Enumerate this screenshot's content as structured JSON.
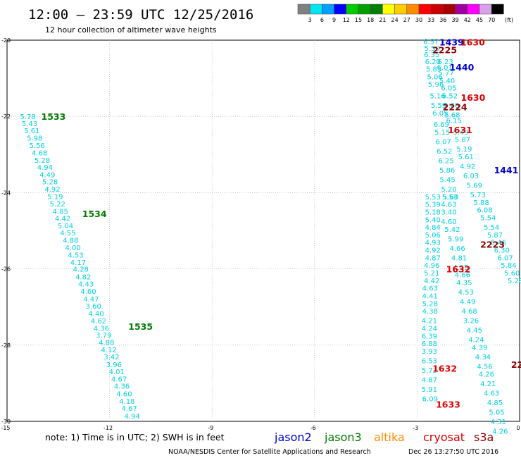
{
  "header": {
    "title": "12:00 — 23:59 UTC 12/25/2016",
    "subtitle": "12 hour collection of altimeter wave heights",
    "scale_unit": "(ft)"
  },
  "colorbar": {
    "swatches": [
      "#808080",
      "#00e5ee",
      "#00a0ff",
      "#0000ff",
      "#00cc00",
      "#00a000",
      "#008000",
      "#ffff00",
      "#ffcc00",
      "#ff8c00",
      "#ff0000",
      "#cc0000",
      "#aa0000",
      "#a000a0",
      "#ff00ff",
      "#d8a0e8",
      "#000000"
    ],
    "labels": [
      "3",
      "6",
      "9",
      "12",
      "15",
      "18",
      "21",
      "24",
      "27",
      "30",
      "33",
      "36",
      "39",
      "42",
      "45",
      "70"
    ]
  },
  "footer": {
    "note": "note: 1) Time is in UTC; 2) SWH is in feet",
    "credit": "NOAA/NESDIS Center for Satellite Applications and Research",
    "timestamp": "Dec 26 13:27:50 UTC 2016"
  },
  "legend": [
    {
      "name": "jason2",
      "color": "#0000cc"
    },
    {
      "name": "jason3",
      "color": "#007a00"
    },
    {
      "name": "altika",
      "color": "#ff8c00"
    },
    {
      "name": "cryosat",
      "color": "#dd0000"
    },
    {
      "name": "s3a",
      "color": "#8b0000"
    }
  ],
  "chart_data": {
    "type": "scatter",
    "title": "12:00 — 23:59 UTC 12/25/2016",
    "subtitle": "12 hour collection of altimeter wave heights",
    "xlim": [
      -15,
      0
    ],
    "ylim": [
      -30,
      -20
    ],
    "x_ticks": [
      "-15",
      "-12",
      "-9",
      "-6",
      "-3",
      "0"
    ],
    "y_ticks": [
      "-20",
      "-22",
      "-24",
      "-26",
      "-28",
      "-30"
    ],
    "grid": true,
    "value_color": "#00d0e0",
    "tracks": [
      {
        "points": [
          {
            "x": -14.62,
            "y": -22.0,
            "v": "5.78"
          },
          {
            "x": -14.57,
            "y": -22.18,
            "v": "5.43"
          },
          {
            "x": -14.5,
            "y": -22.37,
            "v": "5.61"
          },
          {
            "x": -14.42,
            "y": -22.56,
            "v": "5.98"
          },
          {
            "x": -14.35,
            "y": -22.75,
            "v": "5.56"
          },
          {
            "x": -14.28,
            "y": -22.95,
            "v": "4.68"
          },
          {
            "x": -14.2,
            "y": -23.14,
            "v": "5.28"
          },
          {
            "x": -14.12,
            "y": -23.33,
            "v": "4.94"
          },
          {
            "x": -14.05,
            "y": -23.52,
            "v": "4.49"
          },
          {
            "x": -13.97,
            "y": -23.71,
            "v": "5.28"
          },
          {
            "x": -13.9,
            "y": -23.9,
            "v": "4.92"
          },
          {
            "x": -13.82,
            "y": -24.09,
            "v": "5.19"
          },
          {
            "x": -13.75,
            "y": -24.29,
            "v": "5.22"
          },
          {
            "x": -13.67,
            "y": -24.48,
            "v": "4.85"
          },
          {
            "x": -13.6,
            "y": -24.67,
            "v": "4.42"
          },
          {
            "x": -13.52,
            "y": -24.86,
            "v": "5.04"
          },
          {
            "x": -13.45,
            "y": -25.05,
            "v": "4.55"
          },
          {
            "x": -13.37,
            "y": -25.24,
            "v": "4.88"
          },
          {
            "x": -13.3,
            "y": -25.43,
            "v": "4.00"
          },
          {
            "x": -13.22,
            "y": -25.63,
            "v": "4.53"
          },
          {
            "x": -13.15,
            "y": -25.82,
            "v": "4.17"
          },
          {
            "x": -13.07,
            "y": -26.0,
            "v": "4.28"
          },
          {
            "x": -13.0,
            "y": -26.2,
            "v": "4.82"
          },
          {
            "x": -12.92,
            "y": -26.39,
            "v": "4.43"
          },
          {
            "x": -12.85,
            "y": -26.58,
            "v": "4.60"
          },
          {
            "x": -12.77,
            "y": -26.78,
            "v": "4.47"
          },
          {
            "x": -12.7,
            "y": -26.97,
            "v": "3.60"
          },
          {
            "x": -12.62,
            "y": -27.16,
            "v": "4.40"
          },
          {
            "x": -12.55,
            "y": -27.36,
            "v": "4.62"
          },
          {
            "x": -12.47,
            "y": -27.55,
            "v": "4.36"
          },
          {
            "x": -12.4,
            "y": -27.73,
            "v": "3.79"
          },
          {
            "x": -12.32,
            "y": -27.92,
            "v": "4.88"
          },
          {
            "x": -12.25,
            "y": -28.11,
            "v": "4.12"
          },
          {
            "x": -12.17,
            "y": -28.3,
            "v": "3.42"
          },
          {
            "x": -12.1,
            "y": -28.5,
            "v": "3.96"
          },
          {
            "x": -12.02,
            "y": -28.69,
            "v": "4.01"
          },
          {
            "x": -11.95,
            "y": -28.88,
            "v": "4.67"
          },
          {
            "x": -11.87,
            "y": -29.07,
            "v": "4.36"
          },
          {
            "x": -11.8,
            "y": -29.27,
            "v": "4.60"
          },
          {
            "x": -11.72,
            "y": -29.46,
            "v": "4.18"
          },
          {
            "x": -11.65,
            "y": -29.65,
            "v": "4.67"
          },
          {
            "x": -11.57,
            "y": -29.85,
            "v": "4.94"
          }
        ]
      },
      {
        "points": [
          {
            "x": -2.82,
            "y": -20.03,
            "v": "6.57"
          },
          {
            "x": -2.79,
            "y": -20.2,
            "v": "5.50"
          },
          {
            "x": -2.8,
            "y": -20.37,
            "v": "6.35"
          },
          {
            "x": -2.77,
            "y": -20.55,
            "v": "6.20"
          },
          {
            "x": -2.74,
            "y": -20.75,
            "v": "5.85"
          },
          {
            "x": -2.71,
            "y": -20.95,
            "v": "5.06"
          },
          {
            "x": -2.68,
            "y": -21.15,
            "v": "5.96"
          },
          {
            "x": -2.63,
            "y": -21.45,
            "v": "5.16"
          },
          {
            "x": -2.6,
            "y": -21.7,
            "v": "5.59"
          },
          {
            "x": -2.55,
            "y": -21.9,
            "v": "6.05"
          },
          {
            "x": -2.52,
            "y": -22.2,
            "v": "6.69"
          },
          {
            "x": -2.49,
            "y": -22.4,
            "v": "5.15"
          },
          {
            "x": -2.46,
            "y": -22.65,
            "v": "6.07"
          },
          {
            "x": -2.43,
            "y": -22.9,
            "v": "6.52"
          },
          {
            "x": -2.38,
            "y": -23.15,
            "v": "6.25"
          },
          {
            "x": -2.35,
            "y": -23.4,
            "v": "5.86"
          },
          {
            "x": -2.34,
            "y": -23.65,
            "v": "5.45"
          },
          {
            "x": -2.3,
            "y": -23.9,
            "v": "5.20"
          },
          {
            "x": -2.27,
            "y": -24.1,
            "v": "5.53"
          }
        ]
      },
      {
        "points": [
          {
            "x": -2.77,
            "y": -24.1,
            "v": "5.53"
          },
          {
            "x": -2.77,
            "y": -24.3,
            "v": "5.39"
          },
          {
            "x": -2.77,
            "y": -24.5,
            "v": "5.18"
          },
          {
            "x": -2.77,
            "y": -24.7,
            "v": "5.40"
          },
          {
            "x": -2.77,
            "y": -24.9,
            "v": "4.84"
          },
          {
            "x": -2.77,
            "y": -25.1,
            "v": "5.06"
          },
          {
            "x": -2.77,
            "y": -25.3,
            "v": "4.93"
          },
          {
            "x": -2.77,
            "y": -25.5,
            "v": "4.92"
          },
          {
            "x": -2.77,
            "y": -25.7,
            "v": "4.87"
          },
          {
            "x": -2.8,
            "y": -25.9,
            "v": "4.96"
          },
          {
            "x": -2.8,
            "y": -26.1,
            "v": "5.21"
          },
          {
            "x": -2.8,
            "y": -26.3,
            "v": "4.42"
          },
          {
            "x": -2.85,
            "y": -26.5,
            "v": "4.63"
          },
          {
            "x": -2.85,
            "y": -26.7,
            "v": "4.41"
          },
          {
            "x": -2.85,
            "y": -26.9,
            "v": "5.28"
          },
          {
            "x": -2.85,
            "y": -27.1,
            "v": "4.38"
          },
          {
            "x": -2.87,
            "y": -27.35,
            "v": "4.21"
          },
          {
            "x": -2.87,
            "y": -27.55,
            "v": "4.24"
          },
          {
            "x": -2.87,
            "y": -27.75,
            "v": "6.39"
          },
          {
            "x": -2.87,
            "y": -27.95,
            "v": "6.88"
          },
          {
            "x": -2.87,
            "y": -28.15,
            "v": "3.93"
          },
          {
            "x": -2.87,
            "y": -28.4,
            "v": "6.53"
          },
          {
            "x": -2.87,
            "y": -28.65,
            "v": "5.73"
          },
          {
            "x": -2.87,
            "y": -28.9,
            "v": "4.87"
          },
          {
            "x": -2.87,
            "y": -29.15,
            "v": "5.91"
          },
          {
            "x": -2.85,
            "y": -29.4,
            "v": "6.09"
          }
        ]
      },
      {
        "points": [
          {
            "x": -2.4,
            "y": -20.55,
            "v": "6.23"
          },
          {
            "x": -2.42,
            "y": -20.7,
            "v": "6.01"
          },
          {
            "x": -2.38,
            "y": -20.85,
            "v": "5.77"
          },
          {
            "x": -2.35,
            "y": -21.05,
            "v": "5.40"
          },
          {
            "x": -2.3,
            "y": -21.25,
            "v": "6.05"
          },
          {
            "x": -2.27,
            "y": -21.45,
            "v": "6.52"
          },
          {
            "x": -2.22,
            "y": -21.7,
            "v": "5.68"
          },
          {
            "x": -2.2,
            "y": -21.95,
            "v": "5.68"
          },
          {
            "x": -2.15,
            "y": -22.1,
            "v": "6.15"
          },
          {
            "x": -1.95,
            "y": -22.4,
            "v": "5.49"
          },
          {
            "x": -1.9,
            "y": -22.6,
            "v": "5.87"
          },
          {
            "x": -1.85,
            "y": -22.85,
            "v": "5.19"
          },
          {
            "x": -1.8,
            "y": -23.05,
            "v": "5.61"
          },
          {
            "x": -1.75,
            "y": -23.3,
            "v": "4.92"
          },
          {
            "x": -1.65,
            "y": -23.55,
            "v": "6.03"
          },
          {
            "x": -1.55,
            "y": -23.8,
            "v": "5.69"
          },
          {
            "x": -1.45,
            "y": -24.05,
            "v": "5.73"
          },
          {
            "x": -1.35,
            "y": -24.25,
            "v": "5.88"
          },
          {
            "x": -1.25,
            "y": -24.45,
            "v": "6.08"
          },
          {
            "x": -1.15,
            "y": -24.65,
            "v": "5.54"
          },
          {
            "x": -1.05,
            "y": -24.9,
            "v": "5.54"
          },
          {
            "x": -0.95,
            "y": -25.1,
            "v": "5.87"
          },
          {
            "x": -0.85,
            "y": -25.3,
            "v": "5.46"
          },
          {
            "x": -0.75,
            "y": -25.5,
            "v": "6.30"
          },
          {
            "x": -0.65,
            "y": -25.7,
            "v": "6.07"
          },
          {
            "x": -0.55,
            "y": -25.9,
            "v": "5.84"
          },
          {
            "x": -0.45,
            "y": -26.1,
            "v": "5.60"
          },
          {
            "x": -0.35,
            "y": -26.3,
            "v": "5.28"
          }
        ]
      },
      {
        "points": [
          {
            "x": -2.25,
            "y": -24.1,
            "v": "5.60"
          },
          {
            "x": -2.3,
            "y": -24.3,
            "v": "4.63"
          },
          {
            "x": -2.3,
            "y": -24.5,
            "v": "3.40"
          },
          {
            "x": -2.3,
            "y": -24.75,
            "v": "4.60"
          },
          {
            "x": -2.2,
            "y": -24.95,
            "v": "5.42"
          },
          {
            "x": -2.1,
            "y": -25.2,
            "v": "5.99"
          },
          {
            "x": -2.05,
            "y": -25.45,
            "v": "4.66"
          },
          {
            "x": -2.0,
            "y": -25.7,
            "v": "4.81"
          },
          {
            "x": -1.95,
            "y": -25.95,
            "v": "4.55"
          },
          {
            "x": -1.9,
            "y": -26.15,
            "v": "4.66"
          },
          {
            "x": -1.85,
            "y": -26.35,
            "v": "4.35"
          },
          {
            "x": -1.8,
            "y": -26.6,
            "v": "4.53"
          },
          {
            "x": -1.75,
            "y": -26.85,
            "v": "4.49"
          },
          {
            "x": -1.7,
            "y": -27.1,
            "v": "4.68"
          },
          {
            "x": -1.65,
            "y": -27.35,
            "v": "3.26"
          },
          {
            "x": -1.55,
            "y": -27.6,
            "v": "4.45"
          },
          {
            "x": -1.5,
            "y": -27.85,
            "v": "4.24"
          },
          {
            "x": -1.4,
            "y": -28.05,
            "v": "4.39"
          },
          {
            "x": -1.3,
            "y": -28.3,
            "v": "4.34"
          },
          {
            "x": -1.25,
            "y": -28.55,
            "v": "4.56"
          },
          {
            "x": -1.2,
            "y": -28.75,
            "v": "4.26"
          },
          {
            "x": -1.15,
            "y": -29.0,
            "v": "4.21"
          },
          {
            "x": -1.05,
            "y": -29.25,
            "v": "4.63"
          },
          {
            "x": -0.95,
            "y": -29.5,
            "v": "4.85"
          },
          {
            "x": -0.9,
            "y": -29.75,
            "v": "5.05"
          },
          {
            "x": -0.85,
            "y": -30.0,
            "v": "4.31"
          },
          {
            "x": -0.8,
            "y": -30.25,
            "v": "4.26"
          }
        ]
      }
    ],
    "time_labels": [
      {
        "text": "1533",
        "x": -14.0,
        "y": -22.0,
        "color": "#007a00"
      },
      {
        "text": "1534",
        "x": -12.8,
        "y": -24.55,
        "color": "#007a00"
      },
      {
        "text": "1535",
        "x": -11.45,
        "y": -27.5,
        "color": "#007a00"
      },
      {
        "text": "1439",
        "x": -2.35,
        "y": -20.05,
        "color": "#0000cc"
      },
      {
        "text": "1630",
        "x": -1.73,
        "y": -20.05,
        "color": "#dd0000"
      },
      {
        "text": "2225",
        "x": -2.55,
        "y": -20.25,
        "color": "#8b0000"
      },
      {
        "text": "1440",
        "x": -2.05,
        "y": -20.7,
        "color": "#0000cc"
      },
      {
        "text": "1630",
        "x": -1.72,
        "y": -21.5,
        "color": "#dd0000"
      },
      {
        "text": "2224",
        "x": -2.25,
        "y": -21.75,
        "color": "#8b0000"
      },
      {
        "text": "1631",
        "x": -2.1,
        "y": -22.35,
        "color": "#dd0000"
      },
      {
        "text": "1441",
        "x": -0.75,
        "y": -23.4,
        "color": "#0000cc"
      },
      {
        "text": "2223",
        "x": -1.15,
        "y": -25.35,
        "color": "#8b0000"
      },
      {
        "text": "1632",
        "x": -2.15,
        "y": -26.0,
        "color": "#dd0000"
      },
      {
        "text": "1632",
        "x": -2.55,
        "y": -28.6,
        "color": "#dd0000"
      },
      {
        "text": "1633",
        "x": -2.45,
        "y": -29.55,
        "color": "#dd0000"
      },
      {
        "text": "22",
        "x": -0.25,
        "y": -28.5,
        "color": "#8b0000"
      }
    ]
  }
}
